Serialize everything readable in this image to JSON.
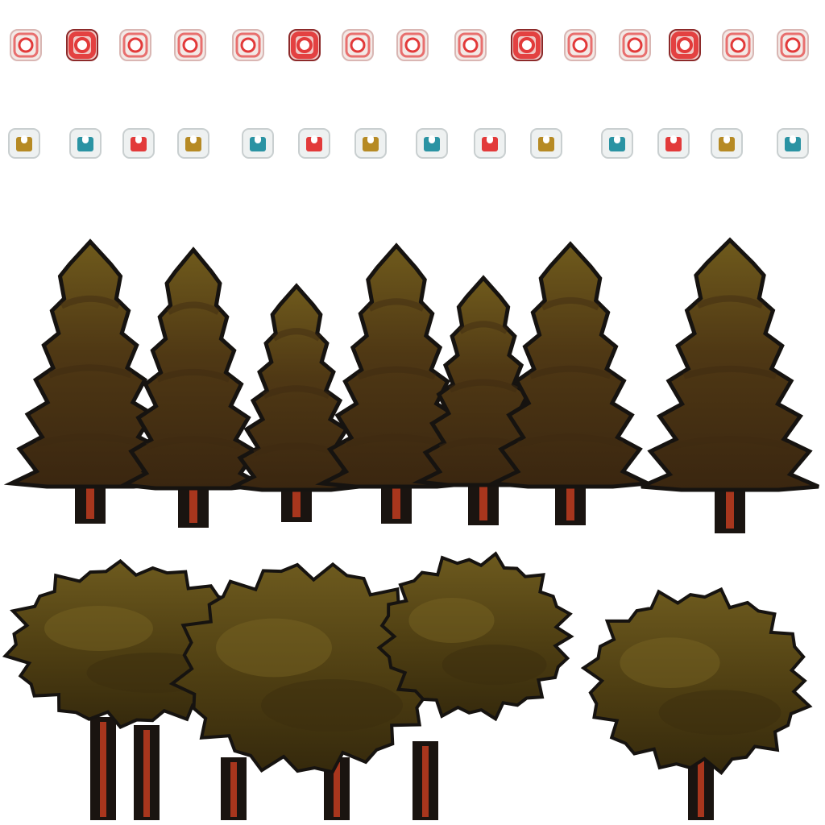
{
  "sprite_sheet": {
    "palette": {
      "background": "#ffffff",
      "outline": "#161310",
      "pine_dark": "#3e2a12",
      "pine_mid": "#5a4416",
      "pine_light": "#77601f",
      "trunk": "#1a1410",
      "trunk_stripe": "#a8361d",
      "bush_dark": "#3b2e0d",
      "bush_mid": "#5b4a14",
      "bush_light": "#7a6524",
      "light_red": "#e23a3a",
      "light_gold": "#b68a24",
      "light_teal": "#2a93a3",
      "light_glass": "#f3e9e6"
    },
    "light_row_1": [
      {
        "kind": "ring",
        "color": "light_red"
      },
      {
        "kind": "bright",
        "color": "light_red"
      },
      {
        "kind": "ring",
        "color": "light_red"
      },
      {
        "kind": "ring",
        "color": "light_red"
      },
      {
        "kind": "ring",
        "color": "light_red"
      },
      {
        "kind": "bright",
        "color": "light_red"
      },
      {
        "kind": "ring",
        "color": "light_red"
      },
      {
        "kind": "ring",
        "color": "light_red"
      },
      {
        "kind": "ring",
        "color": "light_red"
      },
      {
        "kind": "bright",
        "color": "light_red"
      },
      {
        "kind": "ring",
        "color": "light_red"
      },
      {
        "kind": "ring",
        "color": "light_red"
      },
      {
        "kind": "bright",
        "color": "light_red"
      },
      {
        "kind": "ring",
        "color": "light_red"
      },
      {
        "kind": "ring",
        "color": "light_red"
      }
    ],
    "light_row_2": [
      {
        "kind": "cap",
        "color": "light_gold"
      },
      {
        "kind": "cap",
        "color": "light_teal"
      },
      {
        "kind": "cap",
        "color": "light_red"
      },
      {
        "kind": "cap",
        "color": "light_gold"
      },
      {
        "kind": "cap",
        "color": "light_teal"
      },
      {
        "kind": "cap",
        "color": "light_red"
      },
      {
        "kind": "cap",
        "color": "light_gold"
      },
      {
        "kind": "cap",
        "color": "light_teal"
      },
      {
        "kind": "cap",
        "color": "light_red"
      },
      {
        "kind": "cap",
        "color": "light_gold"
      },
      {
        "kind": "cap",
        "color": "light_teal"
      },
      {
        "kind": "cap",
        "color": "light_red"
      },
      {
        "kind": "cap",
        "color": "light_gold"
      },
      {
        "kind": "cap",
        "color": "light_teal"
      }
    ],
    "pine_trees": [
      {
        "icon": "pine-tree-icon"
      },
      {
        "icon": "pine-tree-icon"
      },
      {
        "icon": "pine-tree-icon"
      },
      {
        "icon": "pine-tree-icon"
      },
      {
        "icon": "pine-tree-icon"
      },
      {
        "icon": "pine-tree-icon"
      },
      {
        "icon": "pine-tree-icon"
      }
    ],
    "broadleaf_trees": [
      {
        "icon": "broadleaf-tree-icon"
      },
      {
        "icon": "broadleaf-tree-icon"
      },
      {
        "icon": "broadleaf-tree-icon"
      },
      {
        "icon": "broadleaf-tree-icon"
      }
    ]
  }
}
